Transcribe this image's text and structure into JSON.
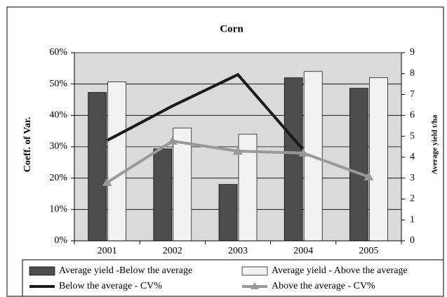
{
  "chart_data": {
    "type": "bar-line",
    "title": "Corn",
    "ylabel": "Coeff. of Var.",
    "y2label": "Average yield t/ha",
    "categories": [
      "2001",
      "2002",
      "2003",
      "2004",
      "2005"
    ],
    "ylim": [
      0,
      60
    ],
    "yticks": [
      {
        "value": 0,
        "label": "0%"
      },
      {
        "value": 10,
        "label": "10%"
      },
      {
        "value": 20,
        "label": "20%"
      },
      {
        "value": 30,
        "label": "30%"
      },
      {
        "value": 40,
        "label": "40%"
      },
      {
        "value": 50,
        "label": "50%"
      },
      {
        "value": 60,
        "label": "60%"
      }
    ],
    "y2lim": [
      0,
      9
    ],
    "y2ticks": [
      0,
      1,
      2,
      3,
      4,
      5,
      6,
      7,
      8,
      9
    ],
    "grid": true,
    "series": [
      {
        "name": "Average yield -Below the average",
        "type": "bar",
        "axis": "y2",
        "color": "#4d4d4d",
        "values": [
          7.1,
          4.4,
          2.7,
          7.8,
          7.3
        ]
      },
      {
        "name": "Average yield - Above the average",
        "type": "bar",
        "axis": "y2",
        "color": "#f2f2f2",
        "values": [
          7.6,
          5.4,
          5.1,
          8.1,
          7.8
        ]
      },
      {
        "name": "Below the average - CV%",
        "type": "line",
        "color": "#1a1a1a",
        "values": [
          32,
          43,
          53,
          29,
          null
        ]
      },
      {
        "name": "Above the average - CV%",
        "type": "line",
        "color": "#999999",
        "values": [
          18.6,
          31.8,
          28.6,
          28,
          20.4
        ]
      }
    ]
  }
}
